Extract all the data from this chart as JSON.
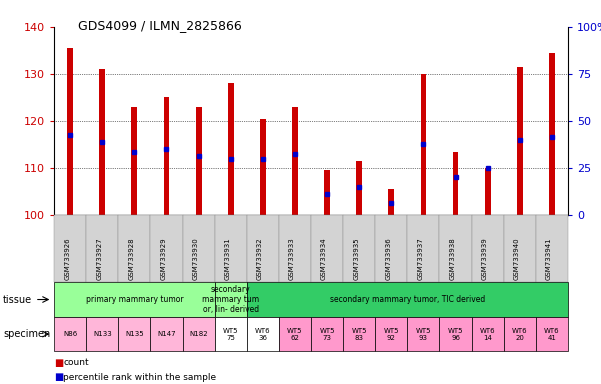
{
  "title": "GDS4099 / ILMN_2825866",
  "samples": [
    "GSM733926",
    "GSM733927",
    "GSM733928",
    "GSM733929",
    "GSM733930",
    "GSM733931",
    "GSM733932",
    "GSM733933",
    "GSM733934",
    "GSM733935",
    "GSM733936",
    "GSM733937",
    "GSM733938",
    "GSM733939",
    "GSM733940",
    "GSM733941"
  ],
  "bar_tops": [
    135.5,
    131.0,
    123.0,
    125.0,
    123.0,
    128.0,
    120.5,
    123.0,
    109.5,
    111.5,
    105.5,
    130.0,
    113.5,
    110.0,
    131.5,
    134.5
  ],
  "blue_marks": [
    117.0,
    115.5,
    113.5,
    114.0,
    112.5,
    112.0,
    112.0,
    113.0,
    104.5,
    106.0,
    102.5,
    115.0,
    108.0,
    110.0,
    116.0,
    116.5
  ],
  "ymin": 100,
  "ymax": 140,
  "yticks": [
    100,
    110,
    120,
    130,
    140
  ],
  "y2ticks_pct": [
    0,
    25,
    50,
    75,
    100
  ],
  "bar_color": "#CC0000",
  "blue_color": "#0000CC",
  "tissue_spans": [
    {
      "start": 0,
      "end": 4,
      "text": "primary mammary tumor",
      "color": "#99FF99"
    },
    {
      "start": 5,
      "end": 5,
      "text": "secondary\nmammary tum\nor, lin- derived",
      "color": "#99FF99"
    },
    {
      "start": 6,
      "end": 15,
      "text": "secondary mammary tumor, TIC derived",
      "color": "#33CC66"
    }
  ],
  "specimen_labels": [
    {
      "text": "N86",
      "idx": 0,
      "color": "#FFB6D9"
    },
    {
      "text": "N133",
      "idx": 1,
      "color": "#FFB6D9"
    },
    {
      "text": "N135",
      "idx": 2,
      "color": "#FFB6D9"
    },
    {
      "text": "N147",
      "idx": 3,
      "color": "#FFB6D9"
    },
    {
      "text": "N182",
      "idx": 4,
      "color": "#FFB6D9"
    },
    {
      "text": "WT5\n75",
      "idx": 5,
      "color": "#FFFFFF"
    },
    {
      "text": "WT6\n36",
      "idx": 6,
      "color": "#FFFFFF"
    },
    {
      "text": "WT5\n62",
      "idx": 7,
      "color": "#FF99CC"
    },
    {
      "text": "WT5\n73",
      "idx": 8,
      "color": "#FF99CC"
    },
    {
      "text": "WT5\n83",
      "idx": 9,
      "color": "#FF99CC"
    },
    {
      "text": "WT5\n92",
      "idx": 10,
      "color": "#FF99CC"
    },
    {
      "text": "WT5\n93",
      "idx": 11,
      "color": "#FF99CC"
    },
    {
      "text": "WT5\n96",
      "idx": 12,
      "color": "#FF99CC"
    },
    {
      "text": "WT6\n14",
      "idx": 13,
      "color": "#FF99CC"
    },
    {
      "text": "WT6\n20",
      "idx": 14,
      "color": "#FF99CC"
    },
    {
      "text": "WT6\n41",
      "idx": 15,
      "color": "#FF99CC"
    }
  ],
  "legend_count_color": "#CC0000",
  "legend_pct_color": "#0000CC",
  "axis_color_left": "#CC0000",
  "axis_color_right": "#0000CC",
  "bar_width": 0.18,
  "xtick_bg": "#D3D3D3"
}
